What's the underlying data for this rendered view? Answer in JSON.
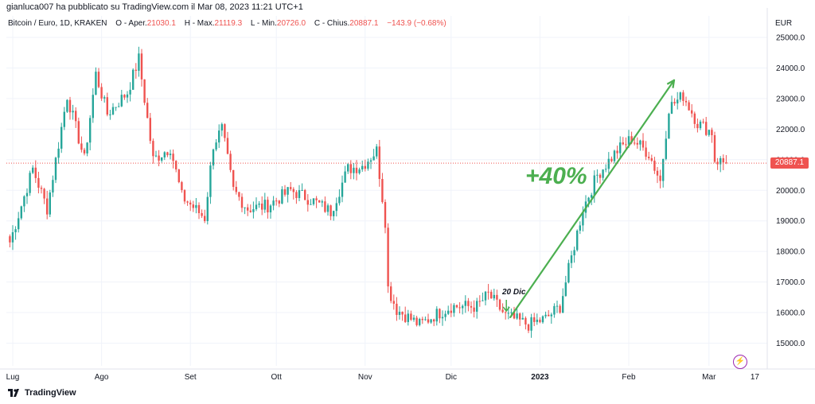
{
  "header": {
    "publisher": "gianluca007 ha pubblicato su TradingView.com il Mar 08, 2023 11:21 UTC+1",
    "symbol": "Bitcoin / Euro, 1D, KRAKEN",
    "open_label": "O - Aper.",
    "open": "21030.1",
    "high_label": "H - Max.",
    "high": "21119.3",
    "low_label": "L - Min.",
    "low": "20726.0",
    "close_label": "C - Chius.",
    "close": "20887.1",
    "change": "−143.9 (−0.68%)"
  },
  "currency": "EUR",
  "brand": "TradingView",
  "last_price_label": "20887.1",
  "colors": {
    "up": "#26a69a",
    "down": "#ef5350",
    "annotation": "#4caf50",
    "grid": "#f0f3fa"
  },
  "annotations": {
    "percent": "+40%",
    "date": "20 Dic"
  },
  "chart_data": {
    "type": "candlestick",
    "y_ticks": [
      "15000.0",
      "16000.0",
      "17000.0",
      "18000.0",
      "19000.0",
      "20000.0",
      "21000.0",
      "22000.0",
      "23000.0",
      "24000.0",
      "25000.0"
    ],
    "x_ticks": [
      "Lug",
      "Ago",
      "Set",
      "Ott",
      "Nov",
      "Dic",
      "2023",
      "Feb",
      "Mar",
      "17"
    ],
    "ylim": [
      14700,
      25400
    ],
    "last_price": 20887.1,
    "trend_line": {
      "from": [
        "2022-12-20",
        15900
      ],
      "to": [
        "2023-02-16",
        23600
      ]
    },
    "series": [
      {
        "date": "2022-06-30",
        "close": 18300
      },
      {
        "date": "2022-07-08",
        "close": 20700
      },
      {
        "date": "2022-07-13",
        "close": 19400
      },
      {
        "date": "2022-07-20",
        "close": 23100
      },
      {
        "date": "2022-07-26",
        "close": 21000
      },
      {
        "date": "2022-07-30",
        "close": 23800
      },
      {
        "date": "2022-08-03",
        "close": 22500
      },
      {
        "date": "2022-08-10",
        "close": 23200
      },
      {
        "date": "2022-08-14",
        "close": 24300
      },
      {
        "date": "2022-08-19",
        "close": 21000
      },
      {
        "date": "2022-08-25",
        "close": 21400
      },
      {
        "date": "2022-08-29",
        "close": 19800
      },
      {
        "date": "2022-09-06",
        "close": 19100
      },
      {
        "date": "2022-09-09",
        "close": 21500
      },
      {
        "date": "2022-09-12",
        "close": 22000
      },
      {
        "date": "2022-09-16",
        "close": 20000
      },
      {
        "date": "2022-09-21",
        "close": 19400
      },
      {
        "date": "2022-09-28",
        "close": 19500
      },
      {
        "date": "2022-10-06",
        "close": 20000
      },
      {
        "date": "2022-10-13",
        "close": 19700
      },
      {
        "date": "2022-10-20",
        "close": 19300
      },
      {
        "date": "2022-10-26",
        "close": 20700
      },
      {
        "date": "2022-10-31",
        "close": 20800
      },
      {
        "date": "2022-11-05",
        "close": 21300
      },
      {
        "date": "2022-11-08",
        "close": 19000
      },
      {
        "date": "2022-11-09",
        "close": 16800
      },
      {
        "date": "2022-11-12",
        "close": 16100
      },
      {
        "date": "2022-11-20",
        "close": 15600
      },
      {
        "date": "2022-11-25",
        "close": 15900
      },
      {
        "date": "2022-12-01",
        "close": 16200
      },
      {
        "date": "2022-12-10",
        "close": 16200
      },
      {
        "date": "2022-12-14",
        "close": 16600
      },
      {
        "date": "2022-12-20",
        "close": 15900
      },
      {
        "date": "2022-12-28",
        "close": 15600
      },
      {
        "date": "2023-01-03",
        "close": 15800
      },
      {
        "date": "2023-01-08",
        "close": 16200
      },
      {
        "date": "2023-01-13",
        "close": 18200
      },
      {
        "date": "2023-01-16",
        "close": 19400
      },
      {
        "date": "2023-01-21",
        "close": 20500
      },
      {
        "date": "2023-01-28",
        "close": 21300
      },
      {
        "date": "2023-02-02",
        "close": 21700
      },
      {
        "date": "2023-02-08",
        "close": 21200
      },
      {
        "date": "2023-02-12",
        "close": 20300
      },
      {
        "date": "2023-02-15",
        "close": 22700
      },
      {
        "date": "2023-02-20",
        "close": 23100
      },
      {
        "date": "2023-02-25",
        "close": 22200
      },
      {
        "date": "2023-03-02",
        "close": 21900
      },
      {
        "date": "2023-03-03",
        "close": 21000
      },
      {
        "date": "2023-03-07",
        "close": 20887.1
      }
    ]
  }
}
